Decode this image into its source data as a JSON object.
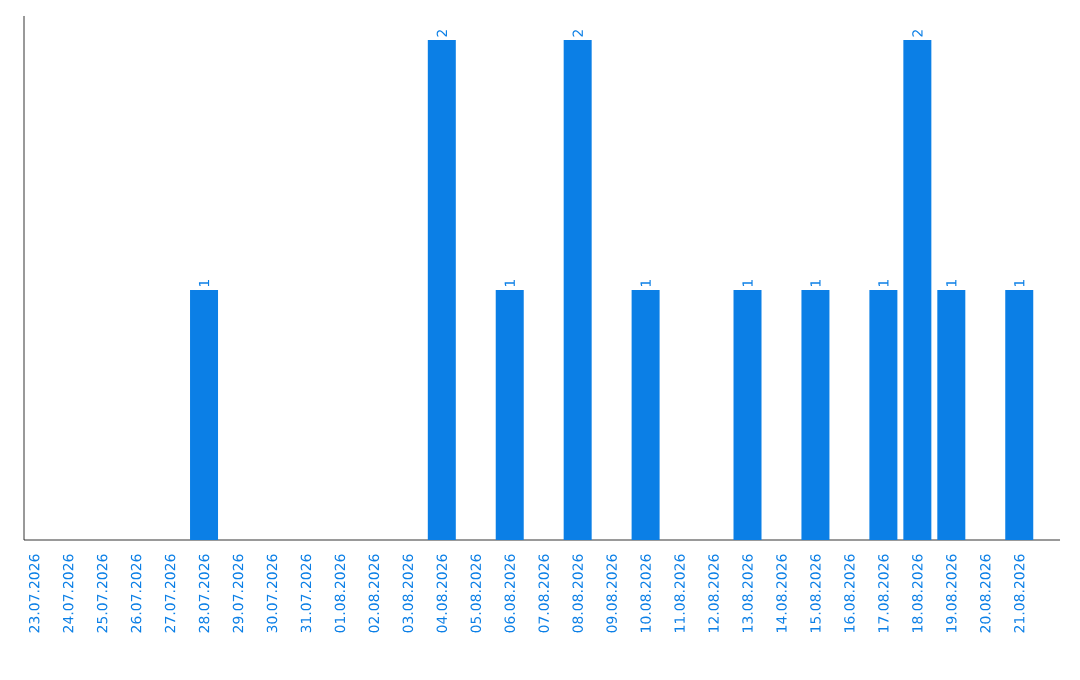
{
  "chart_data": {
    "type": "bar",
    "categories": [
      "23.07.2026",
      "24.07.2026",
      "25.07.2026",
      "26.07.2026",
      "27.07.2026",
      "28.07.2026",
      "29.07.2026",
      "30.07.2026",
      "31.07.2026",
      "01.08.2026",
      "02.08.2026",
      "03.08.2026",
      "04.08.2026",
      "05.08.2026",
      "06.08.2026",
      "07.08.2026",
      "08.08.2026",
      "09.08.2026",
      "10.08.2026",
      "11.08.2026",
      "12.08.2026",
      "13.08.2026",
      "14.08.2026",
      "15.08.2026",
      "16.08.2026",
      "17.08.2026",
      "18.08.2026",
      "19.08.2026",
      "20.08.2026",
      "21.08.2026"
    ],
    "values": [
      0,
      0,
      0,
      0,
      0,
      1,
      0,
      0,
      0,
      0,
      0,
      0,
      2,
      0,
      1,
      0,
      2,
      0,
      1,
      0,
      0,
      1,
      0,
      1,
      0,
      1,
      2,
      1,
      0,
      1
    ],
    "value_labels": [
      null,
      null,
      null,
      null,
      null,
      "1",
      null,
      null,
      null,
      null,
      null,
      null,
      "2",
      null,
      "1",
      null,
      "2",
      null,
      "1",
      null,
      null,
      "1",
      null,
      "1",
      null,
      "1",
      "2",
      "1",
      null,
      "1"
    ],
    "color": "#0b7fe6",
    "tick_labels": "x"
  }
}
